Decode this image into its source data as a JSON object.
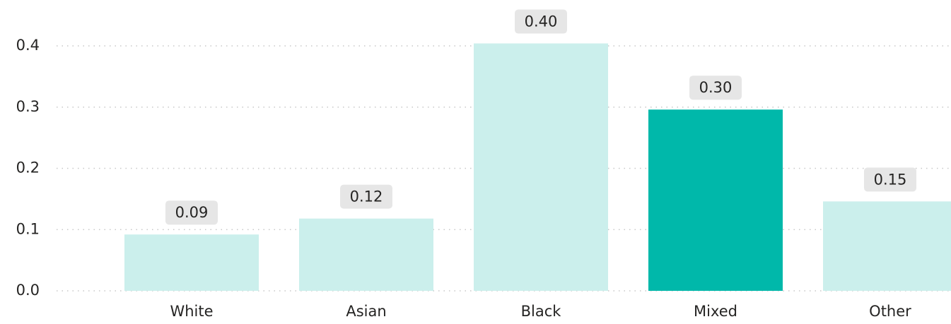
{
  "chart_data": {
    "type": "bar",
    "categories": [
      "White",
      "Asian",
      "Black",
      "Mixed",
      "Other"
    ],
    "values": [
      0.092,
      0.118,
      0.404,
      0.296,
      0.146
    ],
    "value_labels": [
      "0.09",
      "0.12",
      "0.40",
      "0.30",
      "0.15"
    ],
    "colors": [
      "#cbefec",
      "#cbefec",
      "#cbefec",
      "#00b8aa",
      "#cbefec"
    ],
    "ylim": [
      0,
      0.4
    ],
    "yticks": [
      {
        "value": 0,
        "label": "0.0"
      },
      0.1,
      0.2,
      0.3,
      0.4
    ],
    "grid": true
  }
}
